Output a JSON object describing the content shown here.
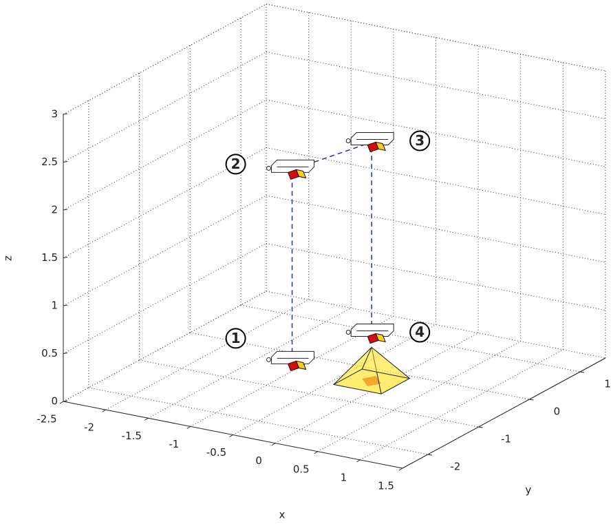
{
  "chart_data": {
    "type": "line3d",
    "xlabel": "x",
    "ylabel": "y",
    "zlabel": "z",
    "xlim": [
      -2.5,
      1.5
    ],
    "ylim": [
      -2.5,
      1.5
    ],
    "zlim": [
      0,
      3
    ],
    "xticks": [
      -2.5,
      -2,
      -1.5,
      -1,
      -0.5,
      0,
      0.5,
      1,
      1.5
    ],
    "yticks": [
      -2,
      -1,
      0,
      1
    ],
    "zticks": [
      0,
      0.5,
      1,
      1.5,
      2,
      2.5,
      3
    ],
    "grid": true,
    "series": [
      {
        "color": "#1f2fbf",
        "x": [
          -0.4,
          -0.4,
          -0.15,
          -0.15
        ],
        "y": [
          -1.5,
          -1.5,
          -0.35,
          -0.35
        ],
        "z": [
          0.5,
          2.5,
          2.5,
          0.5
        ],
        "labels": [
          "1",
          "2",
          "3",
          "4"
        ]
      }
    ]
  }
}
